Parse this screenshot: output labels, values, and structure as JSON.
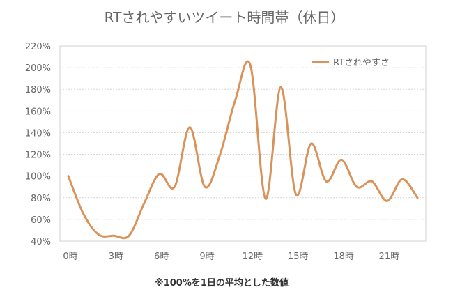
{
  "chart_data": {
    "type": "line",
    "title": "RTされやすいツイート時間帯（休日）",
    "footnote": "※100%を1日の平均とした数値",
    "xlabel": "",
    "ylabel": "",
    "ylim": [
      40,
      220
    ],
    "yticks": [
      40,
      60,
      80,
      100,
      120,
      140,
      160,
      180,
      200,
      220
    ],
    "ytick_labels": [
      "40%",
      "60%",
      "80%",
      "100%",
      "120%",
      "140%",
      "160%",
      "180%",
      "200%",
      "220%"
    ],
    "xlim": [
      0,
      23
    ],
    "xticks": [
      0,
      3,
      6,
      9,
      12,
      15,
      18,
      21
    ],
    "xtick_labels": [
      "0時",
      "3時",
      "6時",
      "9時",
      "12時",
      "15時",
      "18時",
      "21時"
    ],
    "grid": true,
    "legend_position": "top-right",
    "series": [
      {
        "name": "RTされやすさ",
        "color": "#d9935a",
        "x": [
          0,
          1,
          2,
          3,
          4,
          5,
          6,
          7,
          8,
          9,
          10,
          11,
          12,
          13,
          14,
          15,
          16,
          17,
          18,
          19,
          20,
          21,
          22,
          23
        ],
        "values": [
          100,
          65,
          46,
          45,
          45,
          75,
          102,
          90,
          145,
          90,
          120,
          170,
          202,
          79,
          182,
          83,
          130,
          95,
          115,
          90,
          95,
          77,
          97,
          80
        ]
      }
    ]
  }
}
